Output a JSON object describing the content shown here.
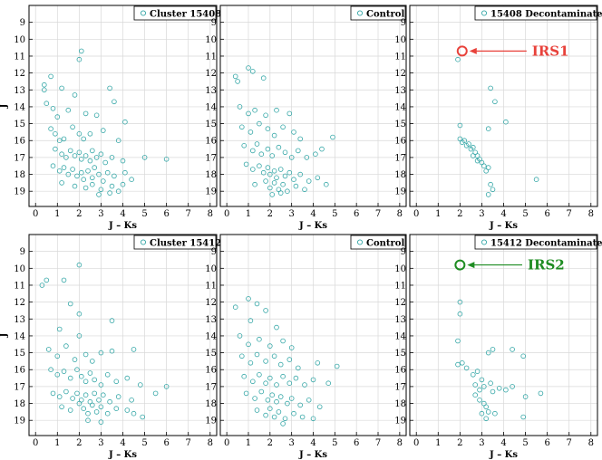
{
  "colors": {
    "marker": "#33a6a6",
    "grid": "#d8d8d8",
    "irs1": "#e8413a",
    "irs2": "#1e8c22"
  },
  "chart_data": [
    {
      "id": "p0",
      "type": "scatter",
      "legend": "Cluster 15408",
      "legend_position": "top-right",
      "xlabel": "J – Ks",
      "ylabel": "J",
      "xlim": [
        -0.3,
        8.3
      ],
      "ylim": [
        19.9,
        8.0
      ],
      "xticks": [
        0,
        1,
        2,
        3,
        4,
        5,
        6,
        7,
        8
      ],
      "yticks": [
        9,
        10,
        11,
        12,
        13,
        14,
        15,
        16,
        17,
        18,
        19
      ],
      "grid": true,
      "points": [
        [
          2.1,
          10.7
        ],
        [
          2.0,
          11.2
        ],
        [
          0.4,
          12.7
        ],
        [
          0.4,
          13.0
        ],
        [
          0.7,
          12.2
        ],
        [
          1.2,
          12.9
        ],
        [
          1.8,
          13.3
        ],
        [
          3.4,
          12.9
        ],
        [
          3.6,
          13.7
        ],
        [
          0.5,
          13.8
        ],
        [
          0.8,
          14.1
        ],
        [
          1.0,
          14.6
        ],
        [
          1.5,
          14.2
        ],
        [
          2.3,
          14.4
        ],
        [
          2.8,
          14.5
        ],
        [
          4.1,
          14.9
        ],
        [
          0.7,
          15.3
        ],
        [
          0.9,
          15.6
        ],
        [
          1.1,
          16.0
        ],
        [
          1.3,
          15.9
        ],
        [
          1.7,
          15.2
        ],
        [
          2.0,
          15.6
        ],
        [
          2.2,
          15.9
        ],
        [
          2.5,
          15.6
        ],
        [
          3.1,
          15.4
        ],
        [
          3.8,
          16.0
        ],
        [
          0.9,
          16.5
        ],
        [
          1.2,
          16.8
        ],
        [
          1.4,
          17.0
        ],
        [
          1.6,
          16.6
        ],
        [
          1.8,
          16.9
        ],
        [
          2.0,
          16.7
        ],
        [
          2.1,
          17.1
        ],
        [
          2.3,
          16.9
        ],
        [
          2.5,
          17.2
        ],
        [
          2.6,
          16.6
        ],
        [
          2.8,
          17.0
        ],
        [
          3.0,
          16.8
        ],
        [
          3.2,
          17.3
        ],
        [
          3.5,
          17.0
        ],
        [
          4.0,
          17.2
        ],
        [
          5.0,
          17.0
        ],
        [
          6.0,
          17.1
        ],
        [
          0.8,
          17.5
        ],
        [
          1.1,
          17.8
        ],
        [
          1.3,
          17.6
        ],
        [
          1.5,
          18.0
        ],
        [
          1.7,
          17.7
        ],
        [
          1.9,
          18.1
        ],
        [
          2.1,
          17.9
        ],
        [
          2.2,
          18.3
        ],
        [
          2.4,
          17.8
        ],
        [
          2.6,
          18.2
        ],
        [
          2.7,
          17.6
        ],
        [
          2.9,
          18.0
        ],
        [
          3.1,
          18.4
        ],
        [
          3.3,
          17.9
        ],
        [
          3.6,
          18.1
        ],
        [
          4.1,
          17.9
        ],
        [
          4.4,
          18.3
        ],
        [
          1.2,
          18.5
        ],
        [
          1.8,
          18.7
        ],
        [
          2.3,
          18.8
        ],
        [
          2.6,
          18.6
        ],
        [
          3.0,
          18.9
        ],
        [
          3.5,
          18.7
        ],
        [
          3.8,
          19.0
        ],
        [
          4.0,
          18.6
        ],
        [
          2.9,
          19.2
        ],
        [
          3.4,
          19.1
        ]
      ],
      "annotation": null
    },
    {
      "id": "p1",
      "type": "scatter",
      "legend": "Control",
      "legend_position": "top-right",
      "xlabel": "J – Ks",
      "ylabel": "",
      "xlim": [
        -0.3,
        8.3
      ],
      "ylim": [
        19.9,
        8.0
      ],
      "xticks": [
        0,
        1,
        2,
        3,
        4,
        5,
        6,
        7,
        8
      ],
      "yticks": [
        9,
        10,
        11,
        12,
        13,
        14,
        15,
        16,
        17,
        18,
        19
      ],
      "grid": true,
      "points": [
        [
          1.0,
          11.7
        ],
        [
          1.2,
          11.9
        ],
        [
          0.4,
          12.2
        ],
        [
          0.5,
          12.5
        ],
        [
          1.7,
          12.3
        ],
        [
          0.6,
          14.0
        ],
        [
          1.0,
          14.4
        ],
        [
          1.3,
          14.2
        ],
        [
          1.8,
          14.5
        ],
        [
          2.3,
          14.2
        ],
        [
          2.9,
          14.4
        ],
        [
          0.7,
          15.2
        ],
        [
          1.1,
          15.5
        ],
        [
          1.5,
          15.0
        ],
        [
          1.9,
          15.3
        ],
        [
          2.2,
          15.7
        ],
        [
          2.6,
          15.2
        ],
        [
          3.1,
          15.5
        ],
        [
          3.4,
          15.9
        ],
        [
          4.9,
          15.8
        ],
        [
          0.8,
          16.3
        ],
        [
          1.2,
          16.6
        ],
        [
          1.4,
          16.2
        ],
        [
          1.6,
          16.8
        ],
        [
          1.9,
          16.5
        ],
        [
          2.1,
          16.9
        ],
        [
          2.4,
          16.4
        ],
        [
          2.7,
          16.7
        ],
        [
          3.0,
          17.0
        ],
        [
          3.3,
          16.6
        ],
        [
          3.7,
          17.0
        ],
        [
          4.1,
          16.8
        ],
        [
          4.4,
          16.5
        ],
        [
          0.9,
          17.4
        ],
        [
          1.2,
          17.7
        ],
        [
          1.5,
          17.5
        ],
        [
          1.7,
          17.9
        ],
        [
          1.9,
          17.6
        ],
        [
          2.0,
          18.0
        ],
        [
          2.2,
          17.8
        ],
        [
          2.3,
          18.2
        ],
        [
          2.5,
          17.7
        ],
        [
          2.7,
          18.1
        ],
        [
          2.9,
          17.9
        ],
        [
          3.1,
          18.3
        ],
        [
          3.4,
          18.0
        ],
        [
          3.8,
          18.4
        ],
        [
          4.2,
          18.2
        ],
        [
          4.6,
          18.6
        ],
        [
          1.3,
          18.6
        ],
        [
          1.8,
          18.4
        ],
        [
          2.0,
          18.8
        ],
        [
          2.2,
          18.5
        ],
        [
          2.4,
          18.9
        ],
        [
          2.6,
          18.6
        ],
        [
          2.8,
          19.0
        ],
        [
          3.2,
          18.7
        ],
        [
          3.6,
          18.9
        ],
        [
          2.1,
          19.2
        ],
        [
          2.5,
          19.1
        ]
      ],
      "annotation": null
    },
    {
      "id": "p2",
      "type": "scatter",
      "legend": "15408 Decontaminated",
      "legend_position": "top-right",
      "xlabel": "J – Ks",
      "ylabel": "",
      "xlim": [
        -0.3,
        8.3
      ],
      "ylim": [
        19.9,
        8.0
      ],
      "xticks": [
        0,
        1,
        2,
        3,
        4,
        5,
        6,
        7,
        8
      ],
      "yticks": [
        9,
        10,
        11,
        12,
        13,
        14,
        15,
        16,
        17,
        18,
        19
      ],
      "grid": true,
      "points": [
        [
          1.9,
          11.2
        ],
        [
          3.4,
          12.9
        ],
        [
          3.6,
          13.7
        ],
        [
          4.1,
          14.9
        ],
        [
          3.3,
          15.3
        ],
        [
          2.0,
          15.1
        ],
        [
          2.0,
          15.9
        ],
        [
          2.1,
          16.1
        ],
        [
          2.2,
          16.0
        ],
        [
          2.3,
          16.3
        ],
        [
          2.4,
          16.2
        ],
        [
          2.5,
          16.5
        ],
        [
          2.6,
          16.4
        ],
        [
          2.7,
          16.7
        ],
        [
          2.8,
          16.9
        ],
        [
          2.9,
          17.1
        ],
        [
          3.0,
          17.3
        ],
        [
          3.1,
          17.5
        ],
        [
          3.2,
          17.8
        ],
        [
          3.3,
          17.6
        ],
        [
          2.6,
          16.9
        ],
        [
          2.8,
          17.2
        ],
        [
          3.4,
          18.6
        ],
        [
          3.5,
          18.9
        ],
        [
          3.3,
          19.2
        ],
        [
          5.5,
          18.3
        ]
      ],
      "annotation": {
        "label": "IRS1",
        "x": 2.1,
        "y": 10.7,
        "color": "#e8413a",
        "label_x": 5.3
      }
    },
    {
      "id": "p3",
      "type": "scatter",
      "legend": "Cluster 15412",
      "legend_position": "top-right",
      "xlabel": "J – Ks",
      "ylabel": "J",
      "xlim": [
        -0.3,
        8.3
      ],
      "ylim": [
        19.9,
        8.0
      ],
      "xticks": [
        0,
        1,
        2,
        3,
        4,
        5,
        6,
        7,
        8
      ],
      "yticks": [
        9,
        10,
        11,
        12,
        13,
        14,
        15,
        16,
        17,
        18,
        19
      ],
      "grid": true,
      "points": [
        [
          2.0,
          9.8
        ],
        [
          0.3,
          11.0
        ],
        [
          0.5,
          10.7
        ],
        [
          1.3,
          10.7
        ],
        [
          1.6,
          12.1
        ],
        [
          2.0,
          12.7
        ],
        [
          3.5,
          13.1
        ],
        [
          1.1,
          13.6
        ],
        [
          2.0,
          14.0
        ],
        [
          0.6,
          14.8
        ],
        [
          1.0,
          15.2
        ],
        [
          1.4,
          14.6
        ],
        [
          1.8,
          15.4
        ],
        [
          2.3,
          15.1
        ],
        [
          2.6,
          15.5
        ],
        [
          3.0,
          15.0
        ],
        [
          3.5,
          14.9
        ],
        [
          4.5,
          14.8
        ],
        [
          0.7,
          16.0
        ],
        [
          1.0,
          16.3
        ],
        [
          1.3,
          16.1
        ],
        [
          1.6,
          16.5
        ],
        [
          1.9,
          16.0
        ],
        [
          2.1,
          16.4
        ],
        [
          2.3,
          16.7
        ],
        [
          2.5,
          16.2
        ],
        [
          2.7,
          16.6
        ],
        [
          3.0,
          16.9
        ],
        [
          3.3,
          16.3
        ],
        [
          3.7,
          16.7
        ],
        [
          4.2,
          16.5
        ],
        [
          4.8,
          16.9
        ],
        [
          0.8,
          17.4
        ],
        [
          1.1,
          17.6
        ],
        [
          1.4,
          17.3
        ],
        [
          1.7,
          17.7
        ],
        [
          1.9,
          17.4
        ],
        [
          2.1,
          17.8
        ],
        [
          2.3,
          17.5
        ],
        [
          2.5,
          17.9
        ],
        [
          2.7,
          17.4
        ],
        [
          2.9,
          17.8
        ],
        [
          3.1,
          17.5
        ],
        [
          3.4,
          17.9
        ],
        [
          3.8,
          17.6
        ],
        [
          4.4,
          17.8
        ],
        [
          5.5,
          17.4
        ],
        [
          6.0,
          17.0
        ],
        [
          1.2,
          18.2
        ],
        [
          1.6,
          18.4
        ],
        [
          2.0,
          18.0
        ],
        [
          2.2,
          18.3
        ],
        [
          2.4,
          18.6
        ],
        [
          2.6,
          18.1
        ],
        [
          2.8,
          18.5
        ],
        [
          3.0,
          18.2
        ],
        [
          3.3,
          18.6
        ],
        [
          3.7,
          18.3
        ],
        [
          4.2,
          18.4
        ],
        [
          4.5,
          18.6
        ],
        [
          4.9,
          18.8
        ],
        [
          2.4,
          19.0
        ],
        [
          3.0,
          19.1
        ]
      ],
      "annotation": null
    },
    {
      "id": "p4",
      "type": "scatter",
      "legend": "Control",
      "legend_position": "top-right",
      "xlabel": "J – Ks",
      "ylabel": "",
      "xlim": [
        -0.3,
        8.3
      ],
      "ylim": [
        19.9,
        8.0
      ],
      "xticks": [
        0,
        1,
        2,
        3,
        4,
        5,
        6,
        7,
        8
      ],
      "yticks": [
        9,
        10,
        11,
        12,
        13,
        14,
        15,
        16,
        17,
        18,
        19
      ],
      "grid": true,
      "points": [
        [
          1.0,
          11.8
        ],
        [
          1.4,
          12.1
        ],
        [
          0.4,
          12.3
        ],
        [
          1.8,
          12.5
        ],
        [
          1.1,
          13.1
        ],
        [
          2.3,
          13.5
        ],
        [
          0.6,
          14.0
        ],
        [
          1.0,
          14.5
        ],
        [
          1.5,
          14.2
        ],
        [
          2.0,
          14.6
        ],
        [
          2.6,
          14.3
        ],
        [
          3.0,
          14.7
        ],
        [
          0.7,
          15.2
        ],
        [
          1.1,
          15.6
        ],
        [
          1.4,
          15.1
        ],
        [
          1.8,
          15.5
        ],
        [
          2.2,
          15.2
        ],
        [
          2.5,
          15.7
        ],
        [
          2.9,
          15.4
        ],
        [
          3.3,
          15.9
        ],
        [
          4.2,
          15.6
        ],
        [
          5.1,
          15.8
        ],
        [
          0.8,
          16.4
        ],
        [
          1.2,
          16.7
        ],
        [
          1.5,
          16.3
        ],
        [
          1.8,
          16.8
        ],
        [
          2.0,
          16.5
        ],
        [
          2.3,
          16.9
        ],
        [
          2.6,
          16.4
        ],
        [
          2.9,
          16.8
        ],
        [
          3.2,
          16.5
        ],
        [
          3.6,
          16.9
        ],
        [
          4.0,
          16.6
        ],
        [
          4.7,
          16.8
        ],
        [
          0.9,
          17.4
        ],
        [
          1.3,
          17.7
        ],
        [
          1.6,
          17.3
        ],
        [
          1.9,
          17.8
        ],
        [
          2.1,
          17.5
        ],
        [
          2.3,
          17.9
        ],
        [
          2.5,
          17.6
        ],
        [
          2.8,
          18.0
        ],
        [
          3.0,
          17.7
        ],
        [
          3.4,
          18.1
        ],
        [
          3.8,
          17.8
        ],
        [
          4.3,
          18.2
        ],
        [
          1.4,
          18.4
        ],
        [
          1.8,
          18.7
        ],
        [
          2.0,
          18.3
        ],
        [
          2.2,
          18.8
        ],
        [
          2.4,
          18.5
        ],
        [
          2.7,
          18.9
        ],
        [
          3.1,
          18.6
        ],
        [
          3.5,
          18.8
        ],
        [
          4.0,
          18.9
        ],
        [
          2.6,
          19.2
        ]
      ],
      "annotation": null
    },
    {
      "id": "p5",
      "type": "scatter",
      "legend": "15412 Decontaminated",
      "legend_position": "top-right",
      "xlabel": "J – Ks",
      "ylabel": "",
      "xlim": [
        -0.3,
        8.3
      ],
      "ylim": [
        19.9,
        8.0
      ],
      "xticks": [
        0,
        1,
        2,
        3,
        4,
        5,
        6,
        7,
        8
      ],
      "yticks": [
        9,
        10,
        11,
        12,
        13,
        14,
        15,
        16,
        17,
        18,
        19
      ],
      "grid": true,
      "points": [
        [
          2.0,
          12.0
        ],
        [
          2.0,
          12.7
        ],
        [
          1.9,
          14.3
        ],
        [
          3.5,
          14.8
        ],
        [
          3.3,
          15.0
        ],
        [
          4.4,
          14.8
        ],
        [
          4.9,
          15.2
        ],
        [
          1.9,
          15.7
        ],
        [
          2.1,
          15.6
        ],
        [
          2.3,
          15.9
        ],
        [
          2.6,
          16.3
        ],
        [
          2.8,
          16.1
        ],
        [
          3.0,
          16.6
        ],
        [
          2.7,
          16.9
        ],
        [
          3.1,
          17.0
        ],
        [
          3.4,
          16.8
        ],
        [
          3.5,
          17.3
        ],
        [
          3.8,
          17.1
        ],
        [
          4.1,
          17.2
        ],
        [
          4.4,
          17.0
        ],
        [
          5.7,
          17.4
        ],
        [
          5.0,
          17.6
        ],
        [
          2.7,
          17.5
        ],
        [
          2.9,
          17.8
        ],
        [
          3.1,
          18.0
        ],
        [
          3.2,
          18.2
        ],
        [
          3.3,
          18.5
        ],
        [
          3.0,
          18.6
        ],
        [
          3.6,
          18.6
        ],
        [
          4.9,
          18.8
        ],
        [
          3.2,
          18.9
        ],
        [
          2.9,
          17.2
        ]
      ],
      "annotation": {
        "label": "IRS2",
        "x": 2.0,
        "y": 9.8,
        "color": "#1e8c22",
        "label_x": 5.1
      }
    }
  ]
}
